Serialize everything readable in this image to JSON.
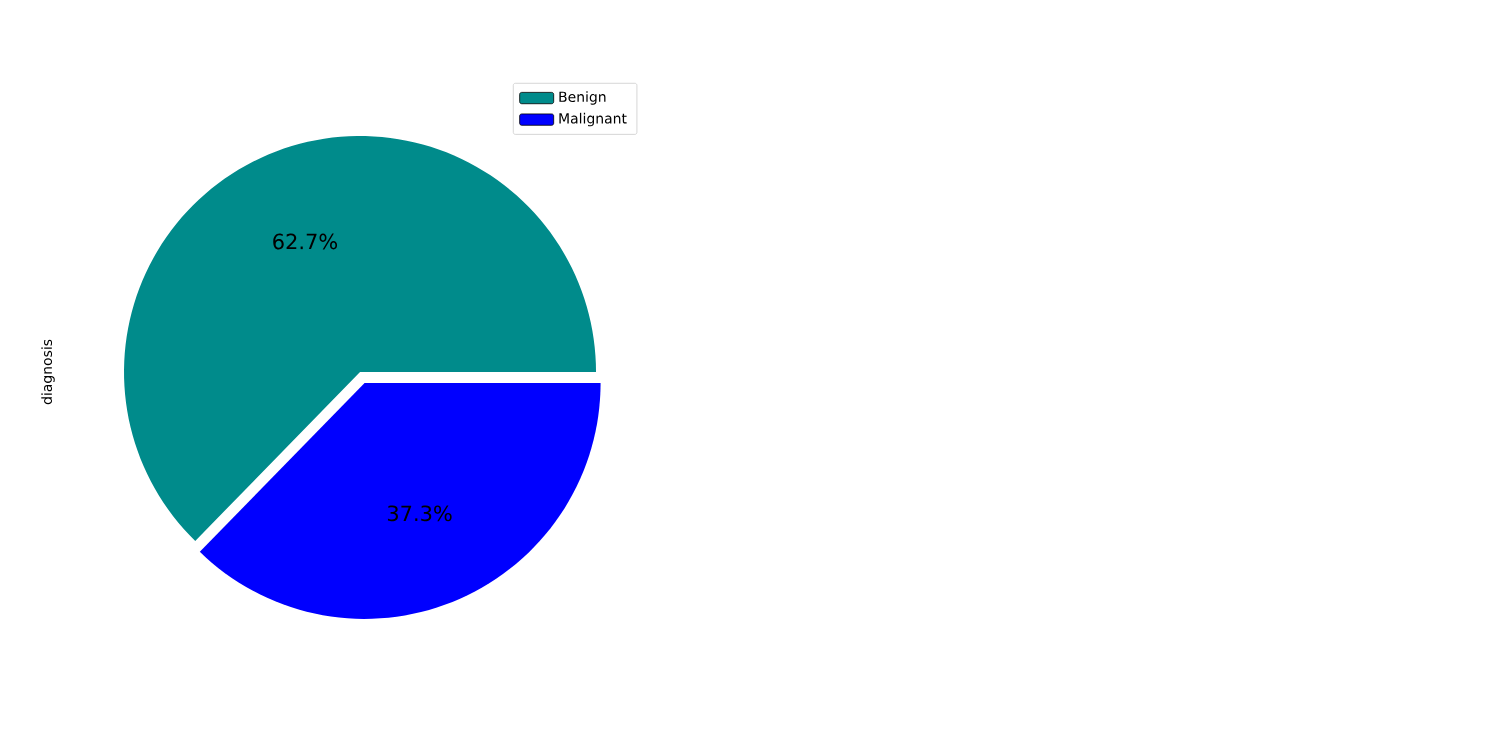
{
  "chart_data": {
    "type": "pie",
    "ylabel": "diagnosis",
    "categories": [
      "Benign",
      "Malignant"
    ],
    "values": [
      62.7,
      37.3
    ],
    "colors": [
      "#008b8b",
      "#0000ff"
    ],
    "value_labels": [
      "62.7%",
      "37.3%"
    ],
    "legend": "top right"
  }
}
